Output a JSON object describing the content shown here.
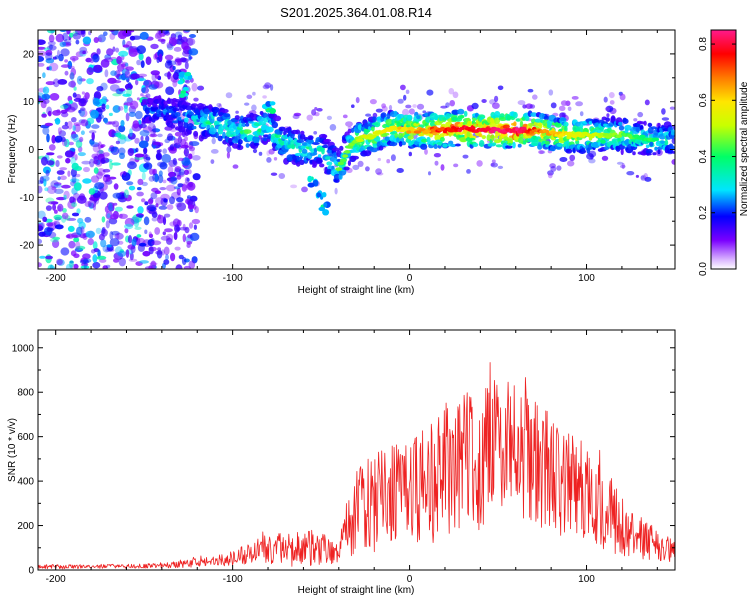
{
  "title": "S201.2025.364.01.08.R14",
  "chart_data": [
    {
      "type": "heatmap",
      "xlabel": "Height of straight line (km)",
      "ylabel": "Frequency (Hz)",
      "xlim": [
        -210,
        150
      ],
      "ylim": [
        -25,
        25
      ],
      "xticks": [
        -200,
        -100,
        0,
        100
      ],
      "yticks": [
        -20,
        -10,
        0,
        10,
        20
      ],
      "ridge": {
        "x": [
          -140,
          -130,
          -120,
          -110,
          -100,
          -90,
          -80,
          -70,
          -60,
          -50,
          -40,
          -35,
          -30,
          -20,
          -10,
          0,
          10,
          20,
          30,
          40,
          50,
          60,
          70,
          80,
          90,
          100,
          110,
          120,
          130,
          140,
          150
        ],
        "freq": [
          8,
          7,
          6,
          5.5,
          4,
          3.5,
          5,
          1,
          0,
          0,
          -4,
          0,
          2,
          3,
          4.5,
          4,
          4,
          4,
          4.5,
          4,
          4,
          4,
          4,
          3.5,
          3,
          3,
          3,
          3,
          2.5,
          2,
          2
        ],
        "amplitude": [
          0.15,
          0.2,
          0.25,
          0.3,
          0.3,
          0.35,
          0.3,
          0.3,
          0.3,
          0.25,
          0.35,
          0.35,
          0.4,
          0.45,
          0.5,
          0.55,
          0.6,
          0.7,
          0.75,
          0.75,
          0.8,
          0.85,
          0.65,
          0.55,
          0.5,
          0.45,
          0.4,
          0.35,
          0.3,
          0.3,
          0.25
        ]
      },
      "colorbar": {
        "label": "Normalized spectral amplitude",
        "range": [
          0.0,
          0.85
        ],
        "ticks": [
          "0.0",
          "0.2",
          "0.4",
          "0.6",
          "0.8"
        ],
        "colormap": [
          "#ffffff",
          "#7a00ff",
          "#0000ff",
          "#00e5ff",
          "#00ff66",
          "#c8ff00",
          "#ffe600",
          "#ff7a00",
          "#ff0000",
          "#ff1a8c"
        ]
      }
    },
    {
      "type": "line",
      "xlabel": "Height of straight line (km)",
      "ylabel": "SNR (10 * v/v)",
      "xlim": [
        -210,
        150
      ],
      "ylim": [
        0,
        1080
      ],
      "xticks": [
        -200,
        -100,
        0,
        100
      ],
      "yticks": [
        0,
        200,
        400,
        600,
        800,
        1000
      ],
      "color": "#ee2222",
      "envelope": {
        "x": [
          -210,
          -180,
          -150,
          -130,
          -110,
          -100,
          -90,
          -80,
          -70,
          -60,
          -50,
          -40,
          -35,
          -30,
          -20,
          -10,
          0,
          10,
          20,
          30,
          40,
          50,
          60,
          70,
          80,
          90,
          100,
          110,
          120,
          130,
          140,
          150
        ],
        "mean": [
          15,
          15,
          18,
          25,
          40,
          55,
          70,
          100,
          90,
          95,
          100,
          55,
          200,
          280,
          330,
          330,
          330,
          380,
          450,
          500,
          520,
          540,
          530,
          490,
          450,
          400,
          350,
          280,
          200,
          150,
          110,
          80
        ],
        "spread": [
          10,
          10,
          10,
          15,
          25,
          35,
          50,
          70,
          70,
          90,
          80,
          40,
          150,
          200,
          250,
          260,
          240,
          280,
          300,
          320,
          340,
          330,
          320,
          300,
          280,
          260,
          230,
          190,
          140,
          100,
          70,
          50
        ]
      }
    }
  ]
}
